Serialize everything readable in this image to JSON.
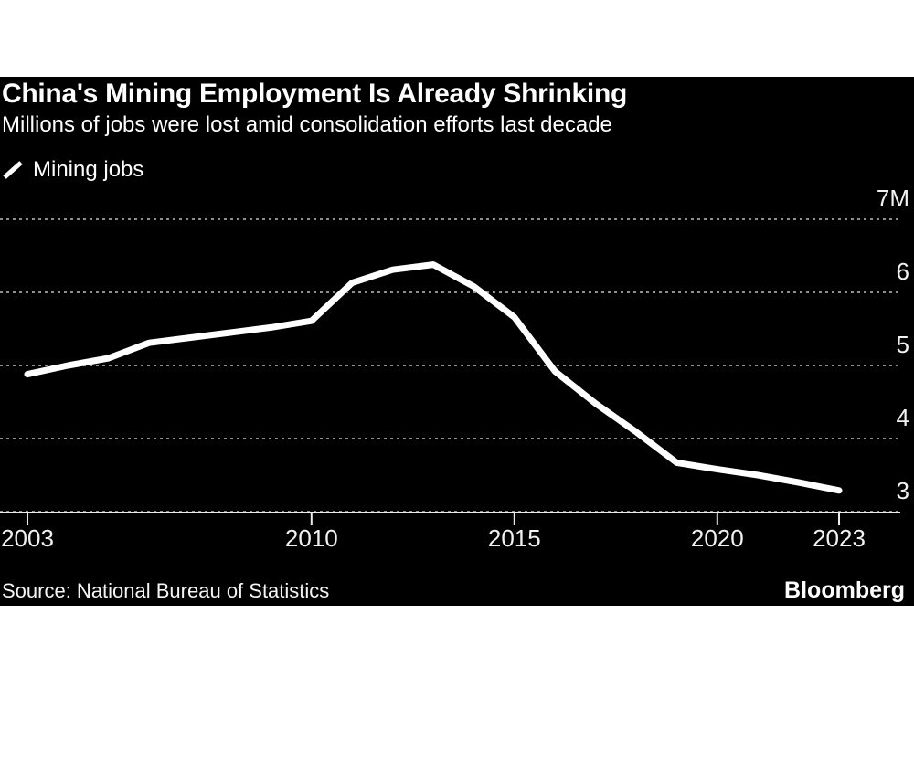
{
  "header": {
    "title": "China's Mining Employment Is Already Shrinking",
    "subtitle": "Millions of jobs were lost amid consolidation efforts last decade"
  },
  "legend": {
    "items": [
      {
        "label": "Mining jobs",
        "marker": "slash-line-icon",
        "color": "#ffffff"
      }
    ]
  },
  "chart_data": {
    "type": "line",
    "title": "China's Mining Employment Is Already Shrinking",
    "subtitle": "Millions of jobs were lost amid consolidation efforts last decade",
    "xlabel": "",
    "ylabel": "",
    "xlim": [
      2003,
      2023
    ],
    "ylim": [
      3,
      7
    ],
    "grid": "horizontal-dotted",
    "legend_position": "top-left",
    "background_color": "#000000",
    "line_color": "#ffffff",
    "grid_color": "#8f8f8f",
    "axis_color": "#ececec",
    "tick_color": "#f1f1f1",
    "x_ticks": [
      2003,
      2010,
      2015,
      2020,
      2023
    ],
    "x_tick_labels": [
      "2003",
      "2010",
      "2015",
      "2020",
      "2023"
    ],
    "y_ticks": [
      7,
      6,
      5,
      4,
      3
    ],
    "y_tick_labels": [
      "7M",
      "6",
      "5",
      "4",
      "3"
    ],
    "series": [
      {
        "name": "Mining jobs",
        "x": [
          2003,
          2004,
          2005,
          2006,
          2007,
          2008,
          2009,
          2010,
          2011,
          2012,
          2013,
          2014,
          2015,
          2016,
          2017,
          2018,
          2019,
          2020,
          2021,
          2022,
          2023
        ],
        "values": [
          4.88,
          5.0,
          5.1,
          5.31,
          5.38,
          5.45,
          5.52,
          5.61,
          6.13,
          6.31,
          6.38,
          6.08,
          5.66,
          4.92,
          4.48,
          4.09,
          3.67,
          3.58,
          3.5,
          3.4,
          3.29
        ]
      }
    ]
  },
  "footer": {
    "source": "Source: National Bureau of Statistics",
    "logo": "Bloomberg"
  }
}
